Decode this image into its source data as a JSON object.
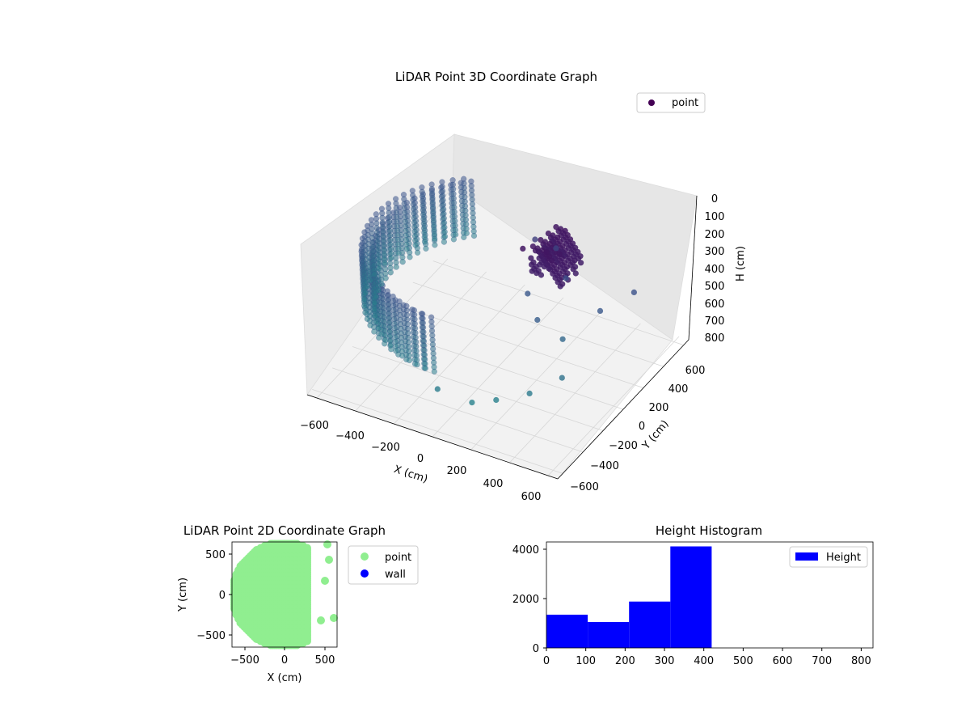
{
  "chart_data": [
    {
      "type": "scatter",
      "title": "LiDAR Point 3D Coordinate Graph",
      "xlabel": "X (cm)",
      "ylabel": "Y (cm)",
      "zlabel": "H (cm)",
      "x_ticks": [
        "−600",
        "−400",
        "−200",
        "0",
        "200",
        "400",
        "600"
      ],
      "y_ticks": [
        "−600",
        "−400",
        "−200",
        "0",
        "200",
        "400",
        "600"
      ],
      "z_ticks": [
        "0",
        "100",
        "200",
        "300",
        "400",
        "500",
        "600",
        "700",
        "800"
      ],
      "xlim": [
        -650,
        650
      ],
      "ylim": [
        -650,
        650
      ],
      "zlim": [
        0,
        830
      ],
      "z_inverted": true,
      "colormap": "viridis",
      "legend": [
        "point"
      ],
      "legend_position": "top-right",
      "grid": true,
      "series": [
        {
          "name": "point",
          "shape": "curved wall arc around the sensor, radius about 600 cm, from the positive-Y side through negative X to the negative-Y side",
          "wall_radius": 600,
          "wall_height_range": [
            200,
            500
          ],
          "scattered_points": [
            {
              "x": 120,
              "y": 200,
              "h": 200
            },
            {
              "x": 200,
              "y": 250,
              "h": 250
            },
            {
              "x": 300,
              "y": 150,
              "h": 320
            },
            {
              "x": 150,
              "y": 50,
              "h": 400
            },
            {
              "x": 250,
              "y": -50,
              "h": 450
            },
            {
              "x": 350,
              "y": 0,
              "h": 550
            },
            {
              "x": 420,
              "y": -150,
              "h": 650
            },
            {
              "x": 300,
              "y": -250,
              "h": 720
            },
            {
              "x": 150,
              "y": -300,
              "h": 780
            },
            {
              "x": 50,
              "y": -350,
              "h": 800
            },
            {
              "x": -100,
              "y": -400,
              "h": 750
            },
            {
              "x": 500,
              "y": 100,
              "h": 400
            },
            {
              "x": 600,
              "y": 250,
              "h": 350
            }
          ]
        }
      ]
    },
    {
      "type": "scatter",
      "title": "LiDAR Point 2D Coordinate Graph",
      "xlabel": "X (cm)",
      "ylabel": "Y (cm)",
      "x_ticks": [
        "−500",
        "0",
        "500"
      ],
      "y_ticks": [
        "−500",
        "0",
        "500"
      ],
      "xlim": [
        -650,
        650
      ],
      "ylim": [
        -650,
        650
      ],
      "legend": [
        "point",
        "wall"
      ],
      "legend_position": "outside right",
      "colors": {
        "point": "#90ee90",
        "wall": "#0000ff"
      },
      "series": [
        {
          "name": "point",
          "shape": "filled half-disk, x from -600 to about 300, y from -650 to 650",
          "outlier_points": [
            {
              "x": 530,
              "y": 620
            },
            {
              "x": 550,
              "y": 430
            },
            {
              "x": 610,
              "y": -290
            },
            {
              "x": 450,
              "y": -320
            },
            {
              "x": 500,
              "y": 170
            }
          ]
        },
        {
          "name": "wall",
          "points": []
        }
      ]
    },
    {
      "type": "bar",
      "title": "Height Histogram",
      "xlabel": "",
      "ylabel": "",
      "legend": [
        "Height"
      ],
      "legend_position": "top-right",
      "x_ticks": [
        "0",
        "100",
        "200",
        "300",
        "400",
        "500",
        "600",
        "700",
        "800"
      ],
      "y_ticks": [
        "0",
        "2000",
        "4000"
      ],
      "xlim": [
        0,
        830
      ],
      "ylim": [
        0,
        4300
      ],
      "color": "#0000ff",
      "bins": [
        {
          "x0": 0,
          "x1": 105,
          "count": 1350
        },
        {
          "x0": 105,
          "x1": 210,
          "count": 1050
        },
        {
          "x0": 210,
          "x1": 315,
          "count": 1880
        },
        {
          "x0": 315,
          "x1": 420,
          "count": 4120
        }
      ]
    }
  ]
}
